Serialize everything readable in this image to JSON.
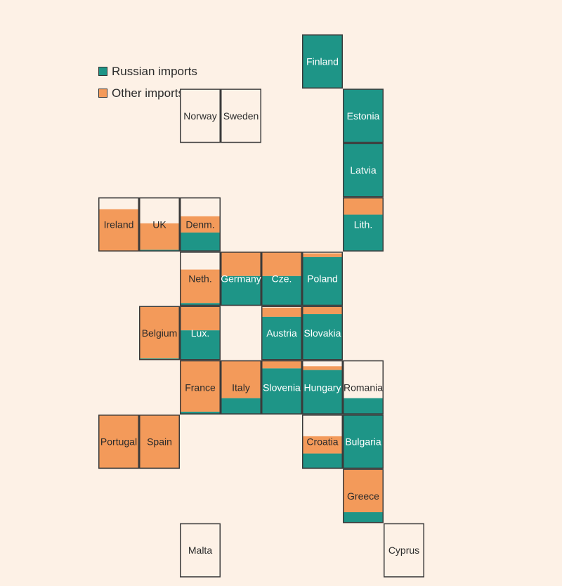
{
  "colors": {
    "russian": "#1e9587",
    "other": "#f39a5a",
    "empty": "#fdf1e6",
    "border": "#3a3a3a"
  },
  "legend": [
    {
      "label": "Russian imports",
      "color": "#1e9587"
    },
    {
      "label": "Other imports",
      "color": "#f39a5a"
    }
  ],
  "chart_data": {
    "type": "tile-map",
    "series": [
      "Russian imports",
      "Other imports"
    ],
    "tiles": [
      {
        "label": "Finland",
        "col": 6,
        "row": 0,
        "russian": 1.0,
        "other": 0.0
      },
      {
        "label": "Norway",
        "col": 3,
        "row": 1,
        "russian": 0.0,
        "other": 0.0
      },
      {
        "label": "Sweden",
        "col": 4,
        "row": 1,
        "russian": 0.0,
        "other": 0.0
      },
      {
        "label": "Estonia",
        "col": 7,
        "row": 1,
        "russian": 1.0,
        "other": 0.0
      },
      {
        "label": "Latvia",
        "col": 7,
        "row": 2,
        "russian": 1.0,
        "other": 0.0
      },
      {
        "label": "Ireland",
        "col": 1,
        "row": 3,
        "russian": 0.0,
        "other": 0.78
      },
      {
        "label": "UK",
        "col": 2,
        "row": 3,
        "russian": 0.03,
        "other": 0.49
      },
      {
        "label": "Denm.",
        "col": 3,
        "row": 3,
        "russian": 0.35,
        "other": 0.3
      },
      {
        "label": "Lith.",
        "col": 7,
        "row": 3,
        "russian": 0.68,
        "other": 0.32
      },
      {
        "label": "Neth.",
        "col": 2.99,
        "row": 4,
        "russian": 0.05,
        "other": 0.62
      },
      {
        "label": "Germany",
        "col": 4,
        "row": 4,
        "russian": 0.55,
        "other": 0.45
      },
      {
        "label": "Cze.",
        "col": 5,
        "row": 4,
        "russian": 0.55,
        "other": 0.45
      },
      {
        "label": "Poland",
        "col": 6,
        "row": 4,
        "russian": 0.9,
        "other": 0.07
      },
      {
        "label": "Belgium",
        "col": 2,
        "row": 5,
        "russian": 0.03,
        "other": 0.97
      },
      {
        "label": "Lux.",
        "col": 3,
        "row": 5,
        "russian": 0.55,
        "other": 0.45
      },
      {
        "label": "Austria",
        "col": 5,
        "row": 5,
        "russian": 0.8,
        "other": 0.17
      },
      {
        "label": "Slovakia",
        "col": 6,
        "row": 5,
        "russian": 0.85,
        "other": 0.15
      },
      {
        "label": "France",
        "col": 3,
        "row": 6,
        "russian": 0.05,
        "other": 0.95
      },
      {
        "label": "Italy",
        "col": 4,
        "row": 6,
        "russian": 0.3,
        "other": 0.7
      },
      {
        "label": "Slovenia",
        "col": 5,
        "row": 6,
        "russian": 0.85,
        "other": 0.15
      },
      {
        "label": "Hungary",
        "col": 6,
        "row": 6,
        "russian": 0.82,
        "other": 0.07
      },
      {
        "label": "Romania",
        "col": 7,
        "row": 6,
        "russian": 0.3,
        "other": 0.0
      },
      {
        "label": "Portugal",
        "col": 1,
        "row": 7,
        "russian": 0.0,
        "other": 1.0
      },
      {
        "label": "Spain",
        "col": 2,
        "row": 7,
        "russian": 0.0,
        "other": 1.0
      },
      {
        "label": "Croatia",
        "col": 6,
        "row": 7,
        "russian": 0.28,
        "other": 0.32
      },
      {
        "label": "Bulgaria",
        "col": 7,
        "row": 7,
        "russian": 1.0,
        "other": 0.0
      },
      {
        "label": "Greece",
        "col": 7,
        "row": 8,
        "russian": 0.2,
        "other": 0.8
      },
      {
        "label": "Malta",
        "col": 3,
        "row": 9,
        "russian": 0.0,
        "other": 0.0
      },
      {
        "label": "Cyprus",
        "col": 8,
        "row": 9,
        "russian": 0.0,
        "other": 0.0
      }
    ]
  }
}
